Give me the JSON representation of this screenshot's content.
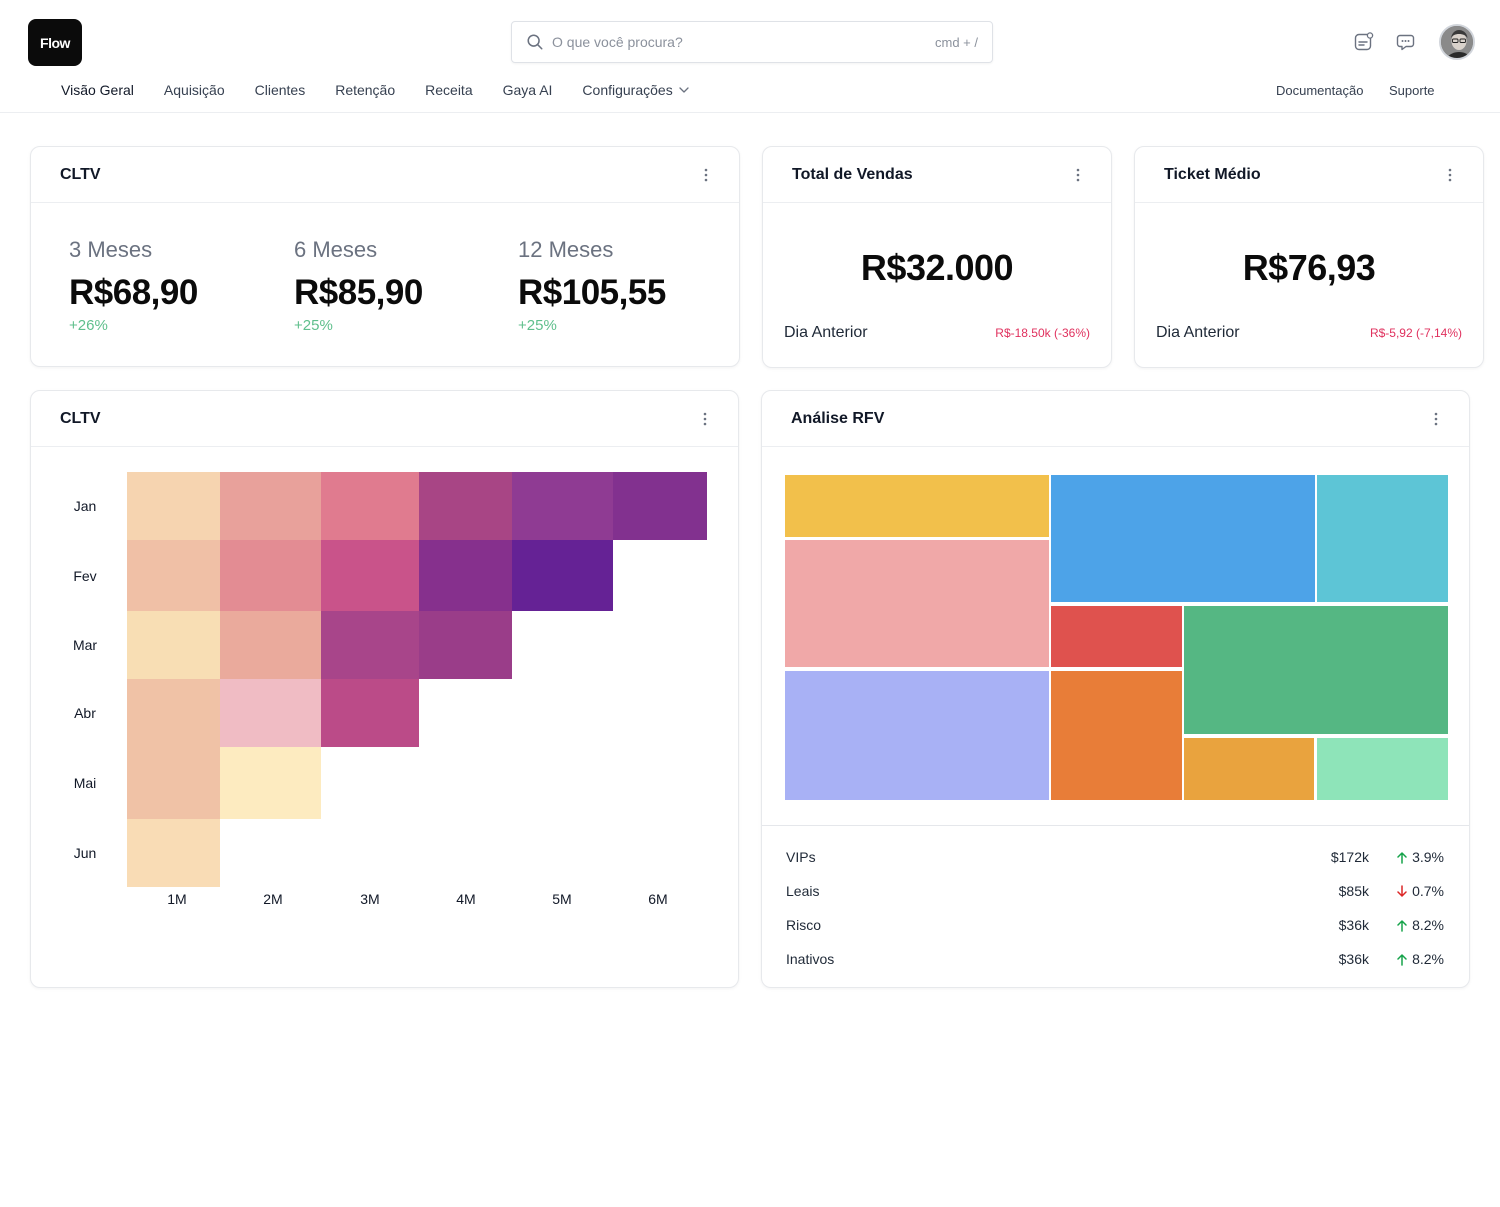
{
  "header": {
    "logo_text": "Flow",
    "search": {
      "placeholder": "O que você procura?",
      "shortcut": "cmd + /"
    },
    "icons": [
      "notifications-icon",
      "chat-icon"
    ]
  },
  "nav": {
    "items": [
      {
        "label": "Visão Geral",
        "active": true
      },
      {
        "label": "Aquisição"
      },
      {
        "label": "Clientes"
      },
      {
        "label": "Retenção"
      },
      {
        "label": "Receita"
      },
      {
        "label": "Gaya AI"
      },
      {
        "label": "Configurações",
        "has_dropdown": true
      }
    ],
    "right": {
      "docs": "Documentação",
      "support": "Suporte"
    }
  },
  "cltv_card": {
    "title": "CLTV",
    "columns": [
      {
        "period": "3  Meses",
        "value": "R$68,90",
        "delta": "+26%"
      },
      {
        "period": "6  Meses",
        "value": "R$85,90",
        "delta": "+25%"
      },
      {
        "period": "12  Meses",
        "value": "R$105,55",
        "delta": "+25%"
      }
    ]
  },
  "sales_card": {
    "title": "Total de Vendas",
    "value": "R$32.000",
    "label": "Dia Anterior",
    "delta": "R$-18.50k (-36%)"
  },
  "ticket_card": {
    "title": "Ticket Médio",
    "value": "R$76,93",
    "label": "Dia Anterior",
    "delta": "R$-5,92 (-7,14%)"
  },
  "cohort_card": {
    "title": "CLTV",
    "chart_data": {
      "type": "heatmap",
      "rows": [
        "Jan",
        "Fev",
        "Mar",
        "Abr",
        "Mai",
        "Jun"
      ],
      "columns": [
        "1M",
        "2M",
        "3M",
        "4M",
        "5M",
        "6M"
      ],
      "cell_colors": [
        [
          "#f6d4b0",
          "#e8a19b",
          "#e07b8f",
          "#a84585",
          "#8f3b93",
          "#82318f"
        ],
        [
          "#f0c0a6",
          "#e38c93",
          "#c9538a",
          "#86308d",
          "#652295"
        ],
        [
          "#f8deb4",
          "#eaaa9c",
          "#a8458a",
          "#9a3d89"
        ],
        [
          "#f0c2a6",
          "#f0bcc4",
          "#bb4b88"
        ],
        [
          "#f0c2a6",
          "#fdebc0"
        ],
        [
          "#f9dcb5"
        ]
      ]
    }
  },
  "rfv_card": {
    "title": "Análise RFV",
    "treemap_colors": [
      "#f2c04b",
      "#4da3e8",
      "#5dc5d6",
      "#f0a8a8",
      "#df524e",
      "#55b783",
      "#a8b1f5",
      "#e87d38",
      "#e9a33e",
      "#8ee4b9"
    ],
    "rows": [
      {
        "name": "VIPs",
        "value": "$172k",
        "change": "3.9%",
        "direction": "up"
      },
      {
        "name": "Leais",
        "value": "$85k",
        "change": "0.7%",
        "direction": "down"
      },
      {
        "name": "Risco",
        "value": "$36k",
        "change": "8.2%",
        "direction": "up"
      },
      {
        "name": "Inativos",
        "value": "$36k",
        "change": "8.2%",
        "direction": "up"
      }
    ],
    "colors": {
      "up": "#16a34a",
      "down": "#dc2626"
    }
  }
}
